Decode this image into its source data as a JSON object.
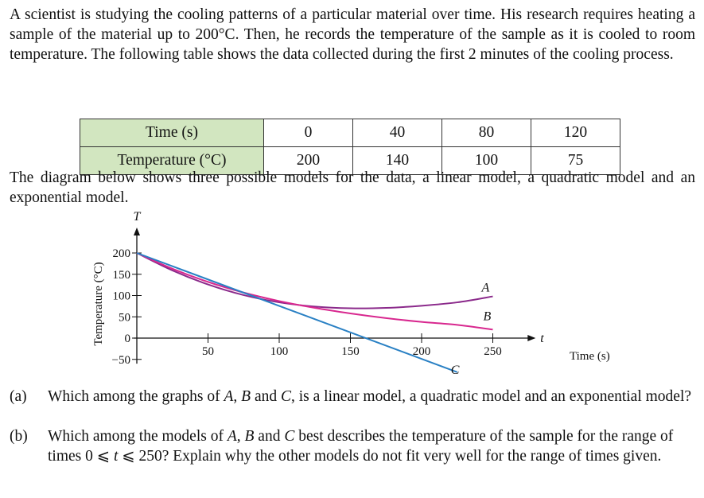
{
  "intro": "A scientist is studying the cooling patterns of a particular material over time. His research requires heating a sample of the material up to 200°C. Then, he records the temperature of the sample as it is cooled to room temperature. The following table shows the data collected during the first 2 minutes of the cooling process.",
  "table": {
    "rows": [
      {
        "header": "Time (s)",
        "values": [
          "0",
          "40",
          "80",
          "120"
        ]
      },
      {
        "header": "Temperature (°C)",
        "values": [
          "200",
          "140",
          "100",
          "75"
        ]
      }
    ],
    "header_bg": "#d2e6c0"
  },
  "diagram_intro": "The diagram below shows three possible models for the data, a linear model, a quadratic model and an exponential model.",
  "chart_data": {
    "type": "line",
    "xlabel": "Time (s)",
    "ylabel": "Temperature (°C)",
    "x_axis_letter": "t",
    "y_axis_letter": "T",
    "x_ticks": [
      50,
      100,
      150,
      200,
      250
    ],
    "y_ticks": [
      -50,
      0,
      50,
      100,
      150,
      200
    ],
    "xlim": [
      0,
      270
    ],
    "ylim": [
      -60,
      230
    ],
    "series": [
      {
        "name": "A",
        "model": "quadratic",
        "color": "#8b2a8b",
        "x": [
          0,
          25,
          50,
          75,
          100,
          125,
          150,
          175,
          200,
          225,
          250
        ],
        "y": [
          200,
          159,
          126,
          101,
          84,
          74,
          70,
          71,
          76,
          84,
          98
        ]
      },
      {
        "name": "B",
        "model": "exponential",
        "color": "#d8288f",
        "x": [
          0,
          25,
          50,
          75,
          100,
          125,
          150,
          175,
          200,
          225,
          250
        ],
        "y": [
          200,
          163,
          132,
          107,
          87,
          71,
          58,
          47,
          38,
          31,
          20
        ]
      },
      {
        "name": "C",
        "model": "linear",
        "color": "#2980c4",
        "x": [
          0,
          225
        ],
        "y": [
          200,
          -80
        ]
      }
    ]
  },
  "questions": [
    {
      "label": "(a)",
      "text": "Which among the graphs of A, B and C, is a linear model, a quadratic model and an exponential model?"
    },
    {
      "label": "(b)",
      "text": "Which among the models of A, B and C best describes the temperature of the sample for the range of times 0 ⩽ t ⩽ 250? Explain why the other models do not fit very well for the range of times given."
    }
  ]
}
